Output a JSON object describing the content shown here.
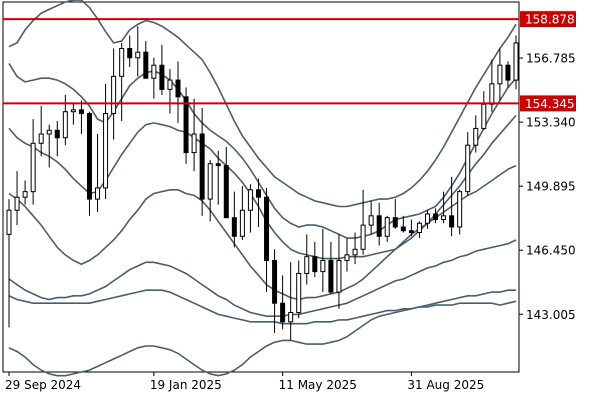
{
  "chart_data": {
    "type": "candlestick",
    "y_axis": {
      "position": "right",
      "ticks": [
        {
          "value": 156.785,
          "label": "156.785"
        },
        {
          "value": 153.34,
          "label": "153.340"
        },
        {
          "value": 149.895,
          "label": "149.895"
        },
        {
          "value": 146.45,
          "label": "146.450"
        },
        {
          "value": 143.005,
          "label": "143.005"
        }
      ],
      "ylim": [
        139.9,
        159.8
      ]
    },
    "x_axis": {
      "position": "bottom",
      "ticks": [
        {
          "index": 0,
          "label": "29 Sep 2024"
        },
        {
          "index": 18,
          "label": "19 Jan 2025"
        },
        {
          "index": 34,
          "label": "11 May 2025"
        },
        {
          "index": 50,
          "label": "31 Aug 2025"
        }
      ],
      "n_bars": 64
    },
    "horizontal_levels": [
      {
        "value": 158.878,
        "label": "158.878",
        "color": "#cc0000"
      },
      {
        "value": 154.345,
        "label": "154.345",
        "color": "#cc0000"
      }
    ],
    "candles": [
      [
        147.3,
        149.2,
        142.3,
        148.6
      ],
      [
        148.6,
        150.7,
        147.8,
        149.3
      ],
      [
        149.3,
        150.2,
        148.9,
        149.6
      ],
      [
        149.6,
        153.5,
        148.9,
        152.2
      ],
      [
        152.2,
        154.2,
        151.5,
        152.7
      ],
      [
        152.7,
        153.2,
        150.9,
        152.9
      ],
      [
        152.9,
        153.4,
        151.5,
        152.5
      ],
      [
        152.5,
        154.8,
        152.1,
        153.9
      ],
      [
        153.9,
        154.4,
        153.2,
        154.0
      ],
      [
        154.0,
        154.5,
        152.7,
        153.8
      ],
      [
        153.8,
        153.9,
        148.3,
        149.2
      ],
      [
        149.2,
        152.7,
        148.5,
        149.8
      ],
      [
        149.8,
        155.4,
        149.2,
        153.8
      ],
      [
        153.8,
        157.3,
        152.4,
        155.8
      ],
      [
        155.8,
        157.6,
        153.4,
        157.3
      ],
      [
        157.3,
        158.0,
        156.3,
        156.8
      ],
      [
        156.8,
        158.5,
        155.8,
        157.1
      ],
      [
        157.1,
        157.7,
        155.8,
        155.7
      ],
      [
        155.7,
        156.8,
        154.6,
        156.4
      ],
      [
        156.4,
        157.5,
        154.8,
        155.1
      ],
      [
        155.1,
        156.2,
        153.8,
        155.6
      ],
      [
        155.6,
        156.6,
        153.3,
        154.7
      ],
      [
        154.7,
        155.2,
        151.1,
        151.7
      ],
      [
        151.7,
        154.6,
        150.7,
        152.7
      ],
      [
        152.7,
        154.1,
        148.3,
        149.2
      ],
      [
        149.2,
        151.3,
        148.0,
        151.1
      ],
      [
        151.1,
        151.8,
        148.9,
        151.0
      ],
      [
        151.0,
        152.0,
        148.2,
        148.2
      ],
      [
        148.2,
        149.6,
        146.6,
        147.2
      ],
      [
        147.2,
        149.9,
        147.0,
        148.6
      ],
      [
        148.6,
        150.0,
        147.4,
        149.7
      ],
      [
        149.7,
        150.3,
        147.7,
        149.3
      ],
      [
        149.3,
        149.8,
        144.2,
        145.9
      ],
      [
        145.9,
        146.5,
        142.0,
        143.6
      ],
      [
        143.6,
        145.1,
        142.2,
        142.6
      ],
      [
        142.6,
        145.8,
        141.6,
        143.1
      ],
      [
        143.1,
        145.9,
        142.8,
        145.2
      ],
      [
        145.2,
        147.3,
        144.6,
        146.1
      ],
      [
        146.1,
        146.9,
        145.0,
        145.3
      ],
      [
        145.3,
        147.6,
        144.2,
        145.9
      ],
      [
        145.9,
        146.9,
        144.1,
        144.2
      ],
      [
        144.2,
        147.3,
        143.3,
        145.9
      ],
      [
        145.9,
        147.1,
        145.3,
        146.2
      ],
      [
        146.2,
        147.4,
        145.7,
        146.5
      ],
      [
        146.5,
        149.7,
        146.2,
        147.8
      ],
      [
        147.8,
        149.1,
        147.3,
        148.3
      ],
      [
        148.3,
        149.0,
        146.7,
        147.2
      ],
      [
        147.2,
        148.3,
        146.9,
        148.2
      ],
      [
        148.2,
        149.2,
        147.6,
        147.7
      ],
      [
        147.7,
        148.3,
        147.4,
        147.5
      ],
      [
        147.5,
        148.1,
        147.2,
        147.4
      ],
      [
        147.4,
        148.0,
        147.1,
        147.9
      ],
      [
        147.9,
        148.6,
        147.6,
        148.4
      ],
      [
        148.4,
        148.7,
        147.9,
        148.1
      ],
      [
        148.1,
        149.6,
        147.9,
        148.3
      ],
      [
        148.3,
        150.4,
        147.2,
        147.7
      ],
      [
        147.7,
        149.7,
        147.3,
        149.6
      ],
      [
        149.6,
        152.8,
        149.4,
        152.1
      ],
      [
        152.1,
        153.7,
        151.7,
        153.0
      ],
      [
        153.0,
        155.0,
        152.9,
        154.3
      ],
      [
        154.3,
        156.7,
        153.9,
        155.4
      ],
      [
        155.4,
        157.3,
        154.5,
        156.4
      ],
      [
        156.4,
        156.6,
        155.2,
        155.6
      ],
      [
        155.6,
        158.0,
        155.1,
        157.6
      ]
    ],
    "overlay_lines": {
      "color": "#4a5d6e",
      "series": [
        {
          "values": [
            157.4,
            157.6,
            158.3,
            158.8,
            159.2,
            159.4,
            159.6,
            159.8,
            159.9,
            159.9,
            159.5,
            158.9,
            158.2,
            157.6,
            157.7,
            158.3,
            158.6,
            158.8,
            158.7,
            158.5,
            158.2,
            157.9,
            157.5,
            157.1,
            156.7,
            156.0,
            155.2,
            154.3,
            153.4,
            152.6,
            152.0,
            151.4,
            150.9,
            150.4,
            150.1,
            149.8,
            149.5,
            149.3,
            149.1,
            149.0,
            148.9,
            148.8,
            148.8,
            148.9,
            149.0,
            149.1,
            149.2,
            149.2,
            149.3,
            149.5,
            149.8,
            150.2,
            150.7,
            151.3,
            152.0,
            152.8,
            153.6,
            154.4,
            155.2,
            155.9,
            156.6,
            157.3,
            157.9,
            158.6
          ]
        },
        {
          "values": [
            156.5,
            155.8,
            155.5,
            155.6,
            155.7,
            155.7,
            155.6,
            155.4,
            155.1,
            154.7,
            154.2,
            153.5,
            153.3,
            153.9,
            154.6,
            155.3,
            155.7,
            156.0,
            156.1,
            155.9,
            155.6,
            155.1,
            154.5,
            153.8,
            153.3,
            152.9,
            152.6,
            152.3,
            151.9,
            151.4,
            150.8,
            150.1,
            149.4,
            148.7,
            148.2,
            147.9,
            147.7,
            147.8,
            147.8,
            147.7,
            147.5,
            147.3,
            147.1,
            147.1,
            147.2,
            147.3,
            147.5,
            147.8,
            148.1,
            148.2,
            148.3,
            148.4,
            148.6,
            148.8,
            149.3,
            149.9,
            150.6,
            151.4,
            152.2,
            153.0,
            153.8,
            154.5,
            155.2,
            155.7
          ]
        },
        {
          "values": [
            153.0,
            152.5,
            152.2,
            152.0,
            151.7,
            151.5,
            151.2,
            150.8,
            150.3,
            149.9,
            149.5,
            149.6,
            150.2,
            150.9,
            151.6,
            152.2,
            152.8,
            153.2,
            153.3,
            153.2,
            153.1,
            152.9,
            152.8,
            152.5,
            152.2,
            151.9,
            151.4,
            151.0,
            150.6,
            150.1,
            149.5,
            148.8,
            148.0,
            147.4,
            146.9,
            146.5,
            146.3,
            146.2,
            146.1,
            146.0,
            146.0,
            146.0,
            146.1,
            146.1,
            146.1,
            146.2,
            146.3,
            146.4,
            146.5,
            146.8,
            147.1,
            147.5,
            147.9,
            148.4,
            148.9,
            149.4,
            149.9,
            150.5,
            151.1,
            151.6,
            152.2,
            152.7,
            153.2,
            153.7
          ]
        },
        {
          "values": [
            149.5,
            149.2,
            148.8,
            148.3,
            147.8,
            147.2,
            146.6,
            146.2,
            145.9,
            145.7,
            145.9,
            146.2,
            146.6,
            147.0,
            147.5,
            148.1,
            148.6,
            149.2,
            149.5,
            149.6,
            149.7,
            149.7,
            149.5,
            149.4,
            149.1,
            148.6,
            148.0,
            147.4,
            146.8,
            146.2,
            145.6,
            145.1,
            144.6,
            144.3,
            144.1,
            143.9,
            143.8,
            143.9,
            143.9,
            144.0,
            144.1,
            144.2,
            144.4,
            144.6,
            144.9,
            145.3,
            145.7,
            146.1,
            146.5,
            146.9,
            147.3,
            147.6,
            147.9,
            148.2,
            148.5,
            148.8,
            149.1,
            149.4,
            149.6,
            149.9,
            150.2,
            150.5,
            150.8,
            151.0
          ]
        },
        {
          "values": [
            144.9,
            144.6,
            144.3,
            144.1,
            143.9,
            143.8,
            143.9,
            143.9,
            144.0,
            144.0,
            144.1,
            144.3,
            144.5,
            144.8,
            145.1,
            145.4,
            145.6,
            145.8,
            145.8,
            145.7,
            145.6,
            145.4,
            145.2,
            144.9,
            144.6,
            144.3,
            144.0,
            143.8,
            143.5,
            143.3,
            143.1,
            143.0,
            142.9,
            142.9,
            142.9,
            143.0,
            143.0,
            143.1,
            143.2,
            143.3,
            143.4,
            143.5,
            143.6,
            143.8,
            144.0,
            144.2,
            144.4,
            144.6,
            144.8,
            144.9,
            145.1,
            145.3,
            145.5,
            145.6,
            145.8,
            145.9,
            146.1,
            146.2,
            146.4,
            146.5,
            146.6,
            146.7,
            146.8,
            147.0
          ]
        },
        {
          "values": [
            144.0,
            143.8,
            143.7,
            143.6,
            143.6,
            143.6,
            143.6,
            143.6,
            143.6,
            143.6,
            143.6,
            143.7,
            143.8,
            143.9,
            144.0,
            144.1,
            144.2,
            144.3,
            144.3,
            144.3,
            144.2,
            144.0,
            143.8,
            143.6,
            143.4,
            143.2,
            143.0,
            142.9,
            142.8,
            142.7,
            142.6,
            142.6,
            142.6,
            142.6,
            142.5,
            142.5,
            142.5,
            142.5,
            142.6,
            142.6,
            142.6,
            142.7,
            142.7,
            142.8,
            142.9,
            143.0,
            143.1,
            143.2,
            143.2,
            143.3,
            143.3,
            143.4,
            143.4,
            143.5,
            143.5,
            143.5,
            143.6,
            143.6,
            143.6,
            143.6,
            143.6,
            143.5,
            143.6,
            143.7
          ]
        },
        {
          "values": [
            141.2,
            141.0,
            140.7,
            140.3,
            140.0,
            139.8,
            139.7,
            139.7,
            139.8,
            139.9,
            140.0,
            140.2,
            140.4,
            140.6,
            140.8,
            141.0,
            141.2,
            141.3,
            141.3,
            141.2,
            141.1,
            140.9,
            140.6,
            140.3,
            140.0,
            139.8,
            139.7,
            139.8,
            140.0,
            140.3,
            140.7,
            141.0,
            141.3,
            141.5,
            141.6,
            141.6,
            141.5,
            141.4,
            141.4,
            141.4,
            141.5,
            141.6,
            141.8,
            142.1,
            142.4,
            142.7,
            142.9,
            143.0,
            143.1,
            143.2,
            143.3,
            143.4,
            143.5,
            143.6,
            143.7,
            143.8,
            143.9,
            144.0,
            144.0,
            144.1,
            144.2,
            144.2,
            144.3,
            144.3
          ]
        }
      ]
    }
  }
}
